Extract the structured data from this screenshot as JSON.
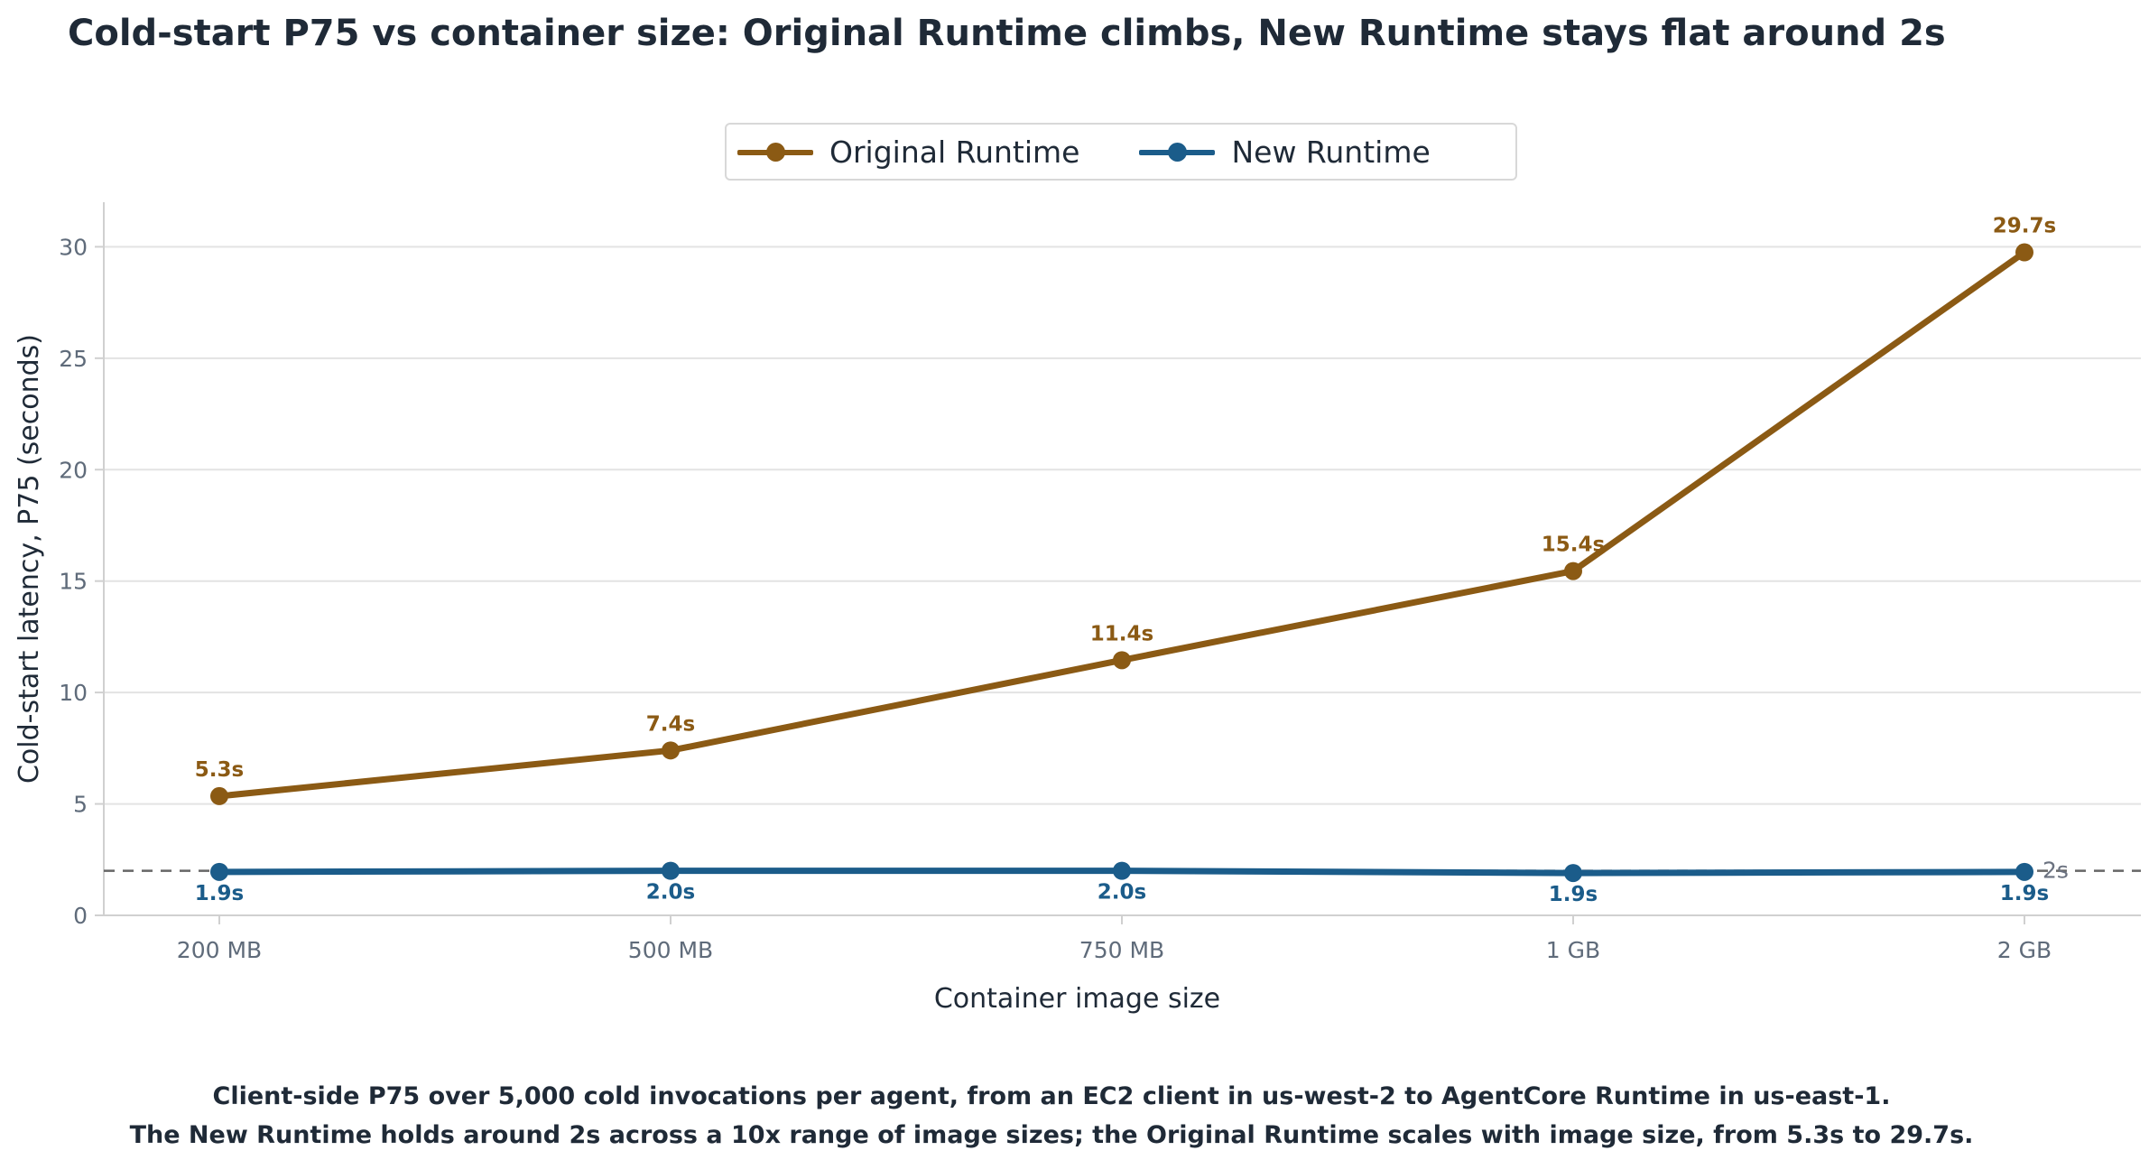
{
  "chart_data": {
    "type": "line",
    "title": "Cold-start P75 vs container size: Original Runtime climbs, New Runtime stays flat around 2s",
    "xlabel": "Container image size",
    "ylabel": "Cold-start latency, P75 (seconds)",
    "categories": [
      "200 MB",
      "500 MB",
      "750 MB",
      "1 GB",
      "2 GB"
    ],
    "ylim": [
      0,
      32
    ],
    "yticks": [
      0,
      5,
      10,
      15,
      20,
      25,
      30
    ],
    "grid": "horizontal",
    "legend_position": "top-center",
    "series": [
      {
        "name": "Original Runtime",
        "color": "#8B5A14",
        "values": [
          5.35,
          7.4,
          11.45,
          15.45,
          29.75
        ],
        "labels": [
          "5.3s",
          "7.4s",
          "11.4s",
          "15.4s",
          "29.7s"
        ]
      },
      {
        "name": "New Runtime",
        "color": "#1B5C8A",
        "values": [
          1.95,
          2.0,
          2.0,
          1.9,
          1.95
        ],
        "labels": [
          "1.9s",
          "2.0s",
          "2.0s",
          "1.9s",
          "1.9s"
        ]
      }
    ],
    "reference_line": {
      "value": 2,
      "label": "2s",
      "color": "#666666"
    },
    "notes": [
      "Client-side P75 over 5,000 cold invocations per agent, from an EC2 client in us-west-2 to AgentCore Runtime in us-east-1.",
      "The New Runtime holds around 2s across a 10x range of image sizes; the Original Runtime scales with image size, from 5.3s to 29.7s."
    ]
  }
}
